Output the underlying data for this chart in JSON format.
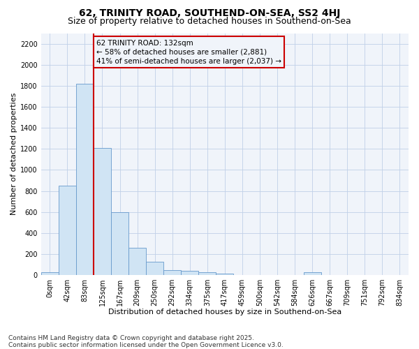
{
  "title": "62, TRINITY ROAD, SOUTHEND-ON-SEA, SS2 4HJ",
  "subtitle": "Size of property relative to detached houses in Southend-on-Sea",
  "xlabel": "Distribution of detached houses by size in Southend-on-Sea",
  "ylabel": "Number of detached properties",
  "bar_color": "#d0e4f4",
  "bar_edge_color": "#6699cc",
  "grid_color": "#c0d0e8",
  "background_color": "#ffffff",
  "plot_bg_color": "#f0f4fa",
  "annotation_box_edge": "#cc0000",
  "vline_color": "#cc0000",
  "vline_index": 3,
  "annotation_line1": "62 TRINITY ROAD: 132sqm",
  "annotation_line2": "← 58% of detached houses are smaller (2,881)",
  "annotation_line3": "41% of semi-detached houses are larger (2,037) →",
  "categories": [
    "0sqm",
    "42sqm",
    "83sqm",
    "125sqm",
    "167sqm",
    "209sqm",
    "250sqm",
    "292sqm",
    "334sqm",
    "375sqm",
    "417sqm",
    "459sqm",
    "500sqm",
    "542sqm",
    "584sqm",
    "626sqm",
    "667sqm",
    "709sqm",
    "751sqm",
    "792sqm",
    "834sqm"
  ],
  "values": [
    25,
    848,
    1820,
    1210,
    598,
    258,
    128,
    50,
    40,
    30,
    15,
    0,
    0,
    0,
    0,
    25,
    0,
    0,
    0,
    0,
    0
  ],
  "ylim_max": 2300,
  "yticks": [
    0,
    200,
    400,
    600,
    800,
    1000,
    1200,
    1400,
    1600,
    1800,
    2000,
    2200
  ],
  "footer_line1": "Contains HM Land Registry data © Crown copyright and database right 2025.",
  "footer_line2": "Contains public sector information licensed under the Open Government Licence v3.0.",
  "title_fontsize": 10,
  "subtitle_fontsize": 9,
  "xlabel_fontsize": 8,
  "ylabel_fontsize": 8,
  "tick_fontsize": 7,
  "annot_fontsize": 7.5,
  "footer_fontsize": 6.5
}
